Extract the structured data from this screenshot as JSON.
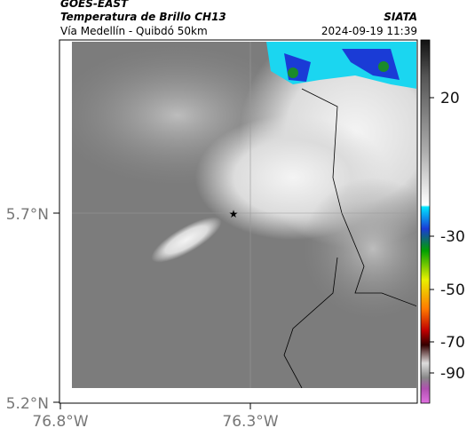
{
  "header": {
    "source": "GOES-EAST",
    "title": "Temperatura de Brillo CH13",
    "org": "SIATA",
    "subtitle": "Vía Medellín - Quibdó 50km",
    "timestamp": "2024-09-19 11:39"
  },
  "map": {
    "lat_labels": [
      "5.7°N",
      "5.2°N"
    ],
    "lon_labels": [
      "76.8°W",
      "76.3°W"
    ],
    "marker": "★"
  },
  "colorbar": {
    "tick_labels": [
      "20",
      "-30",
      "-50",
      "-70",
      "-90"
    ]
  }
}
